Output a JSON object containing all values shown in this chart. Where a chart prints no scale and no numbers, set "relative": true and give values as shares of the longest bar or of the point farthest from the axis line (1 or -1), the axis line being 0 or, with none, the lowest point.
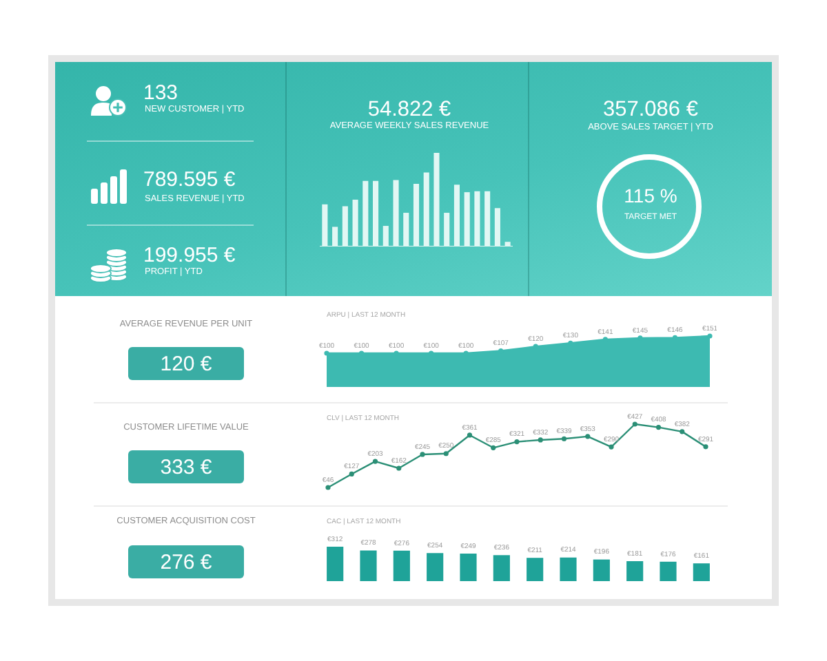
{
  "chart_data": [
    {
      "type": "other",
      "title": "133",
      "subtitle": "NEW CUSTOMER | YTD"
    },
    {
      "type": "other",
      "title": "789.595 €",
      "subtitle": "SALES REVENUE | YTD"
    },
    {
      "type": "other",
      "title": "199.955 €",
      "subtitle": "PROFIT | YTD"
    },
    {
      "type": "other",
      "title": "54.822 €",
      "subtitle": "AVERAGE WEEKLY SALES REVENUE"
    },
    {
      "type": "bar",
      "relative": true,
      "categories": [
        null,
        null,
        null,
        null,
        null,
        null,
        null,
        null,
        null,
        null,
        null,
        null,
        null,
        null,
        null,
        null,
        null,
        null,
        null
      ],
      "values": [
        0.45,
        0.21,
        0.43,
        0.5,
        0.7,
        0.7,
        0.22,
        0.71,
        0.36,
        0.67,
        0.79,
        1,
        0.36,
        0.66,
        0.58,
        0.59,
        0.59,
        0.41,
        0.05
      ],
      "color": "#e2f7f4",
      "tick_labels": false
    },
    {
      "type": "other",
      "title": "357.086 €",
      "subtitle": "ABOVE SALES TARGET | YTD",
      "annotations": [
        "115 %",
        "TARGET MET"
      ]
    },
    {
      "type": "other",
      "title": "AVERAGE REVENUE PER UNIT",
      "annotations": [
        "120 €"
      ]
    },
    {
      "type": "area",
      "title": "ARPU | LAST 12 MONTH",
      "categories": [
        null,
        null,
        null,
        null,
        null,
        null,
        null,
        null,
        null,
        null,
        null,
        null
      ],
      "values": [
        100,
        100,
        100,
        100,
        100,
        107,
        120,
        130,
        141,
        145,
        146,
        151
      ],
      "value_labels": [
        "€100",
        "€100",
        "€100",
        "€100",
        "€100",
        "€107",
        "€120",
        "€130",
        "€141",
        "€145",
        "€146",
        "€151"
      ],
      "color": "#3dbab1",
      "marker": "circle",
      "tick_labels": false
    },
    {
      "type": "other",
      "title": "CUSTOMER LIFETIME VALUE",
      "annotations": [
        "333 €"
      ]
    },
    {
      "type": "line",
      "title": "CLV | LAST 12 MONTH",
      "categories": [
        null,
        null,
        null,
        null,
        null,
        null,
        null,
        null,
        null,
        null,
        null,
        null,
        null,
        null,
        null,
        null,
        null
      ],
      "values": [
        46,
        127,
        203,
        162,
        245,
        250,
        361,
        285,
        321,
        332,
        339,
        353,
        290,
        427,
        408,
        382,
        291
      ],
      "value_labels": [
        "€46",
        "€127",
        "€203",
        "€162",
        "€245",
        "€250",
        "€361",
        "€285",
        "€321",
        "€332",
        "€339",
        "€353",
        "€290",
        "€427",
        "€408",
        "€382",
        "€291"
      ],
      "color": "#2b8f76",
      "marker": "circle",
      "tick_labels": false
    },
    {
      "type": "other",
      "title": "CUSTOMER ACQUISITION COST",
      "annotations": [
        "276 €"
      ]
    },
    {
      "type": "bar",
      "title": "CAC | LAST 12 MONTH",
      "categories": [
        null,
        null,
        null,
        null,
        null,
        null,
        null,
        null,
        null,
        null,
        null,
        null
      ],
      "values": [
        312,
        278,
        276,
        254,
        249,
        236,
        211,
        214,
        196,
        181,
        176,
        161
      ],
      "value_labels": [
        "€312",
        "€278",
        "€276",
        "€254",
        "€249",
        "€236",
        "€211",
        "€214",
        "€196",
        "€181",
        "€176",
        "€161"
      ],
      "color": "#1fa399",
      "tick_labels": false
    }
  ]
}
